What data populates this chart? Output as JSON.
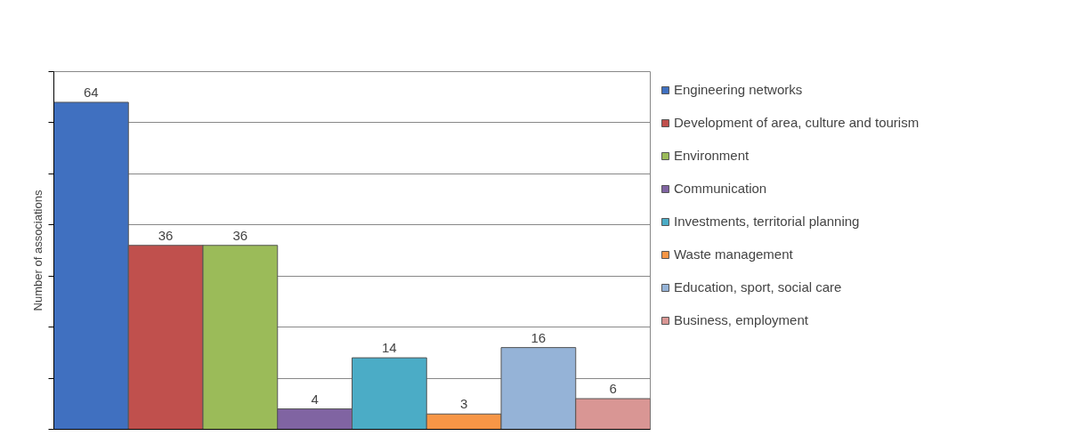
{
  "chart_data": {
    "type": "bar",
    "ylabel": "Number of associations",
    "categories": [
      null
    ],
    "series": [
      {
        "name": "Engineering networks",
        "color": "#4070c0",
        "values": [
          64
        ]
      },
      {
        "name": "Development of area, culture and tourism",
        "color": "#c0504d",
        "values": [
          36
        ]
      },
      {
        "name": "Environment",
        "color": "#9bbb59",
        "values": [
          36
        ]
      },
      {
        "name": "Communication",
        "color": "#8064a2",
        "values": [
          4
        ]
      },
      {
        "name": "Investments, territorial planning",
        "color": "#4bacc6",
        "values": [
          14
        ]
      },
      {
        "name": "Waste management",
        "color": "#f79646",
        "values": [
          3
        ]
      },
      {
        "name": "Education, sport, social care",
        "color": "#95b3d7",
        "values": [
          16
        ]
      },
      {
        "name": "Business, employment",
        "color": "#d99694",
        "values": [
          6
        ]
      }
    ],
    "ylim": [
      0,
      70
    ],
    "yticks": [
      {
        "value": 0,
        "label": null
      },
      {
        "value": 10,
        "label": null
      },
      {
        "value": 20,
        "label": null
      },
      {
        "value": 30,
        "label": null
      },
      {
        "value": 40,
        "label": null
      },
      {
        "value": 50,
        "label": null
      },
      {
        "value": 60,
        "label": null
      },
      {
        "value": 70,
        "label": null
      }
    ],
    "grid": "y",
    "legend": "right",
    "data_labels": true
  }
}
